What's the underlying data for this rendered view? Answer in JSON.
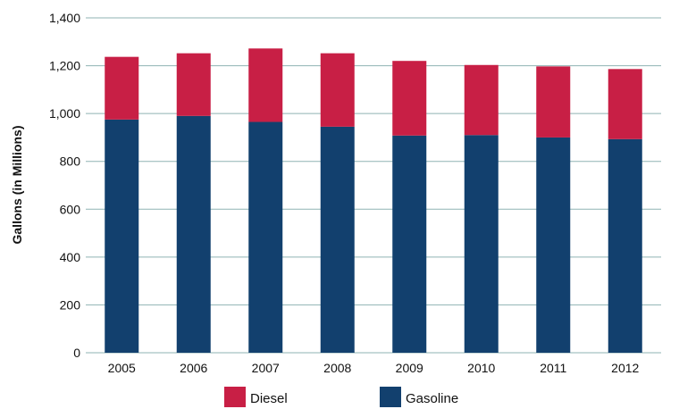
{
  "chart_data": {
    "type": "bar",
    "stacked": true,
    "title": "",
    "xlabel": "",
    "ylabel": "Gallons (in Millions)",
    "ylim": [
      0,
      1400
    ],
    "y_ticks": [
      0,
      200,
      400,
      600,
      800,
      1000,
      1200,
      1400
    ],
    "y_tick_labels": [
      "0",
      "200",
      "400",
      "600",
      "800",
      "1,000",
      "1,200",
      "1,400"
    ],
    "categories": [
      "2005",
      "2006",
      "2007",
      "2008",
      "2009",
      "2010",
      "2011",
      "2012"
    ],
    "series": [
      {
        "name": "Gasoline",
        "color": "#12406e",
        "values": [
          975,
          990,
          965,
          945,
          908,
          910,
          900,
          893
        ]
      },
      {
        "name": "Diesel",
        "color": "#c81f45",
        "values": [
          262,
          262,
          307,
          307,
          312,
          293,
          297,
          293
        ]
      }
    ],
    "grid": true,
    "legend": {
      "position": "bottom",
      "order": [
        "Diesel",
        "Gasoline"
      ]
    }
  }
}
